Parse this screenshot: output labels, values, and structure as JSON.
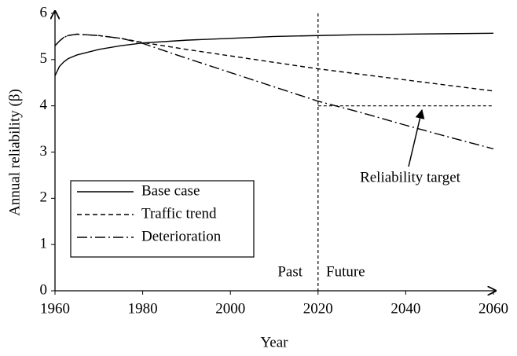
{
  "chart_data": {
    "type": "line",
    "x_label": "Year",
    "y_label": "Annual reliability (β)",
    "x": [
      1960,
      1961,
      1962,
      1963,
      1965,
      1970,
      1975,
      1980,
      1990,
      2000,
      2010,
      2020,
      2030,
      2040,
      2050,
      2060
    ],
    "series": [
      {
        "name": "Base case",
        "color": "#000000",
        "dash": "none",
        "values": [
          4.65,
          4.85,
          4.95,
          5.02,
          5.1,
          5.22,
          5.3,
          5.36,
          5.42,
          5.46,
          5.5,
          5.52,
          5.54,
          5.55,
          5.56,
          5.57
        ]
      },
      {
        "name": "Traffic trend",
        "color": "#000000",
        "dash": "6,4",
        "values": [
          5.3,
          5.4,
          5.48,
          5.52,
          5.55,
          5.52,
          5.46,
          5.37,
          5.22,
          5.08,
          4.94,
          4.8,
          4.68,
          4.56,
          4.44,
          4.32
        ]
      },
      {
        "name": "Deterioration",
        "color": "#000000",
        "dash": "13,4,2,4",
        "values": [
          5.3,
          5.4,
          5.48,
          5.52,
          5.55,
          5.52,
          5.46,
          5.35,
          5.03,
          4.72,
          4.41,
          4.1,
          3.85,
          3.58,
          3.32,
          3.07
        ]
      }
    ],
    "xlim": [
      1960,
      2060
    ],
    "xticks": [
      1960,
      1980,
      2000,
      2020,
      2040,
      2060
    ],
    "ylim": [
      0,
      6
    ],
    "yticks": [
      0,
      1,
      2,
      3,
      4,
      5,
      6
    ],
    "grid": false,
    "legend": "lower left",
    "reference_lines": [
      {
        "axis": "x",
        "value": 2020
      },
      {
        "axis": "y",
        "value": 4,
        "from": 2020,
        "to": 2060
      }
    ],
    "annotations": [
      "Past",
      "Future",
      "Reliability target"
    ]
  }
}
